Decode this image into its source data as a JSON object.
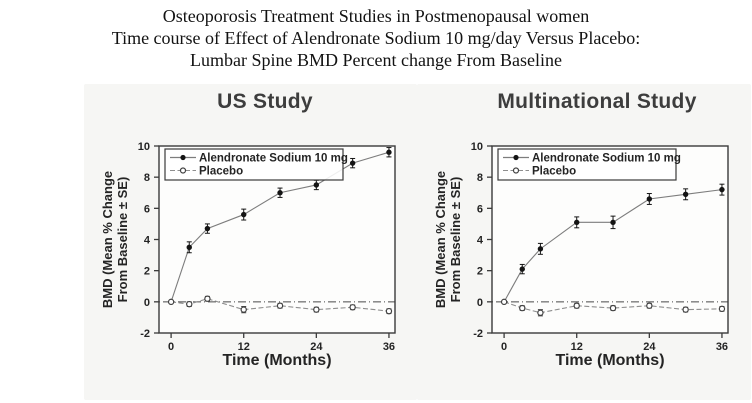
{
  "document": {
    "title_lines": [
      "Osteoporosis Treatment Studies in Postmenopausal women",
      "Time course of Effect of Alendronate Sodium 10 mg/day Versus Placebo:",
      "Lumbar Spine BMD Percent change From Baseline"
    ]
  },
  "colors": {
    "axis": "#3a3a3a",
    "text": "#242424",
    "panel_title": "#3d3d3d",
    "scan_background": "#f6f6f4",
    "plot_background": "#fdfdfc",
    "alendronate_marker": "#141414",
    "alendronate_line": "#7d7d7d",
    "placebo_line": "#8e8e8e",
    "placebo_marker_fill": "#ffffff",
    "placebo_marker_stroke": "#424242",
    "zero_line": "#4a4a4a"
  },
  "chart_data": [
    {
      "type": "line",
      "title": "US Study",
      "xlabel": "Time (Months)",
      "ylabel_lines": [
        "BMD (Mean % Change",
        "From Baseline ± SE)"
      ],
      "legend_entries": [
        "Alendronate Sodium 10 mg",
        "Placebo"
      ],
      "legend_position": "top-left",
      "x": [
        0,
        3,
        6,
        12,
        18,
        24,
        30,
        36
      ],
      "xticks": [
        0,
        12,
        24,
        36
      ],
      "yticks": [
        -2,
        0,
        2,
        4,
        6,
        8,
        10
      ],
      "xlim": [
        -2,
        37
      ],
      "ylim": [
        -2,
        10
      ],
      "grid": false,
      "zero_reference_line": true,
      "series": [
        {
          "name": "Alendronate Sodium 10 mg",
          "marker": "filled-circle",
          "values": [
            0,
            3.5,
            4.7,
            5.6,
            7.0,
            7.5,
            8.9,
            9.6
          ],
          "se": [
            0,
            0.35,
            0.3,
            0.35,
            0.3,
            0.3,
            0.3,
            0.3
          ]
        },
        {
          "name": "Placebo",
          "marker": "open-circle",
          "values": [
            0,
            -0.15,
            0.2,
            -0.5,
            -0.25,
            -0.5,
            -0.35,
            -0.6
          ],
          "se": [
            0,
            0.15,
            0.15,
            0.2,
            0.15,
            0.15,
            0.15,
            0.15
          ]
        }
      ]
    },
    {
      "type": "line",
      "title": "Multinational Study",
      "xlabel": "Time (Months)",
      "ylabel_lines": [
        "BMD (Mean % Change",
        "From Baseline ± SE)"
      ],
      "legend_entries": [
        "Alendronate Sodium 10 mg",
        "Placebo"
      ],
      "legend_position": "top-left",
      "x": [
        0,
        3,
        6,
        12,
        18,
        24,
        30,
        36
      ],
      "xticks": [
        0,
        12,
        24,
        36
      ],
      "yticks": [
        -2,
        0,
        2,
        4,
        6,
        8,
        10
      ],
      "xlim": [
        -2,
        37
      ],
      "ylim": [
        -2,
        10
      ],
      "grid": false,
      "zero_reference_line": true,
      "series": [
        {
          "name": "Alendronate Sodium 10 mg",
          "marker": "filled-circle",
          "values": [
            0,
            2.1,
            3.4,
            5.1,
            5.1,
            6.6,
            6.9,
            7.2
          ],
          "se": [
            0,
            0.3,
            0.35,
            0.35,
            0.4,
            0.35,
            0.35,
            0.35
          ]
        },
        {
          "name": "Placebo",
          "marker": "open-circle",
          "values": [
            0,
            -0.4,
            -0.7,
            -0.25,
            -0.4,
            -0.25,
            -0.5,
            -0.45
          ],
          "se": [
            0,
            0.15,
            0.2,
            0.15,
            0.15,
            0.15,
            0.15,
            0.15
          ]
        }
      ]
    }
  ]
}
